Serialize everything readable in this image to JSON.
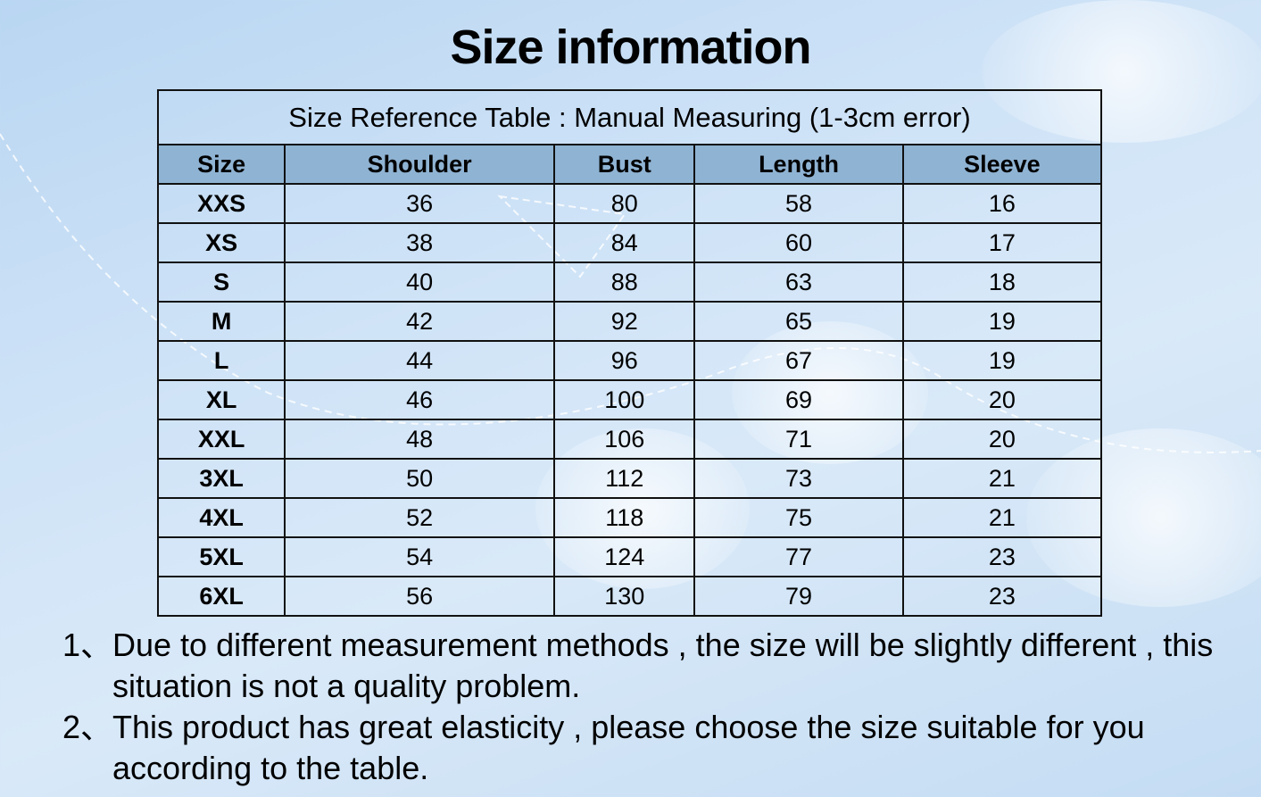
{
  "title": "Size information",
  "table": {
    "caption": "Size Reference Table : Manual Measuring (1-3cm error)",
    "headers": [
      "Size",
      "Shoulder",
      "Bust",
      "Length",
      "Sleeve"
    ],
    "header_color": "#8fb3d3",
    "rows": [
      [
        "XXS",
        "36",
        "80",
        "58",
        "16"
      ],
      [
        "XS",
        "38",
        "84",
        "60",
        "17"
      ],
      [
        "S",
        "40",
        "88",
        "63",
        "18"
      ],
      [
        "M",
        "42",
        "92",
        "65",
        "19"
      ],
      [
        "L",
        "44",
        "96",
        "67",
        "19"
      ],
      [
        "XL",
        "46",
        "100",
        "69",
        "20"
      ],
      [
        "XXL",
        "48",
        "106",
        "71",
        "20"
      ],
      [
        "3XL",
        "50",
        "112",
        "73",
        "21"
      ],
      [
        "4XL",
        "52",
        "118",
        "75",
        "21"
      ],
      [
        "5XL",
        "54",
        "124",
        "77",
        "23"
      ],
      [
        "6XL",
        "56",
        "130",
        "79",
        "23"
      ]
    ]
  },
  "notes": [
    {
      "num": "1、",
      "text": "Due to different measurement methods , the size will be slightly different , this situation is not a quality problem."
    },
    {
      "num": "2、",
      "text": "This product has great elasticity , please choose the size suitable for you according to the table."
    }
  ]
}
